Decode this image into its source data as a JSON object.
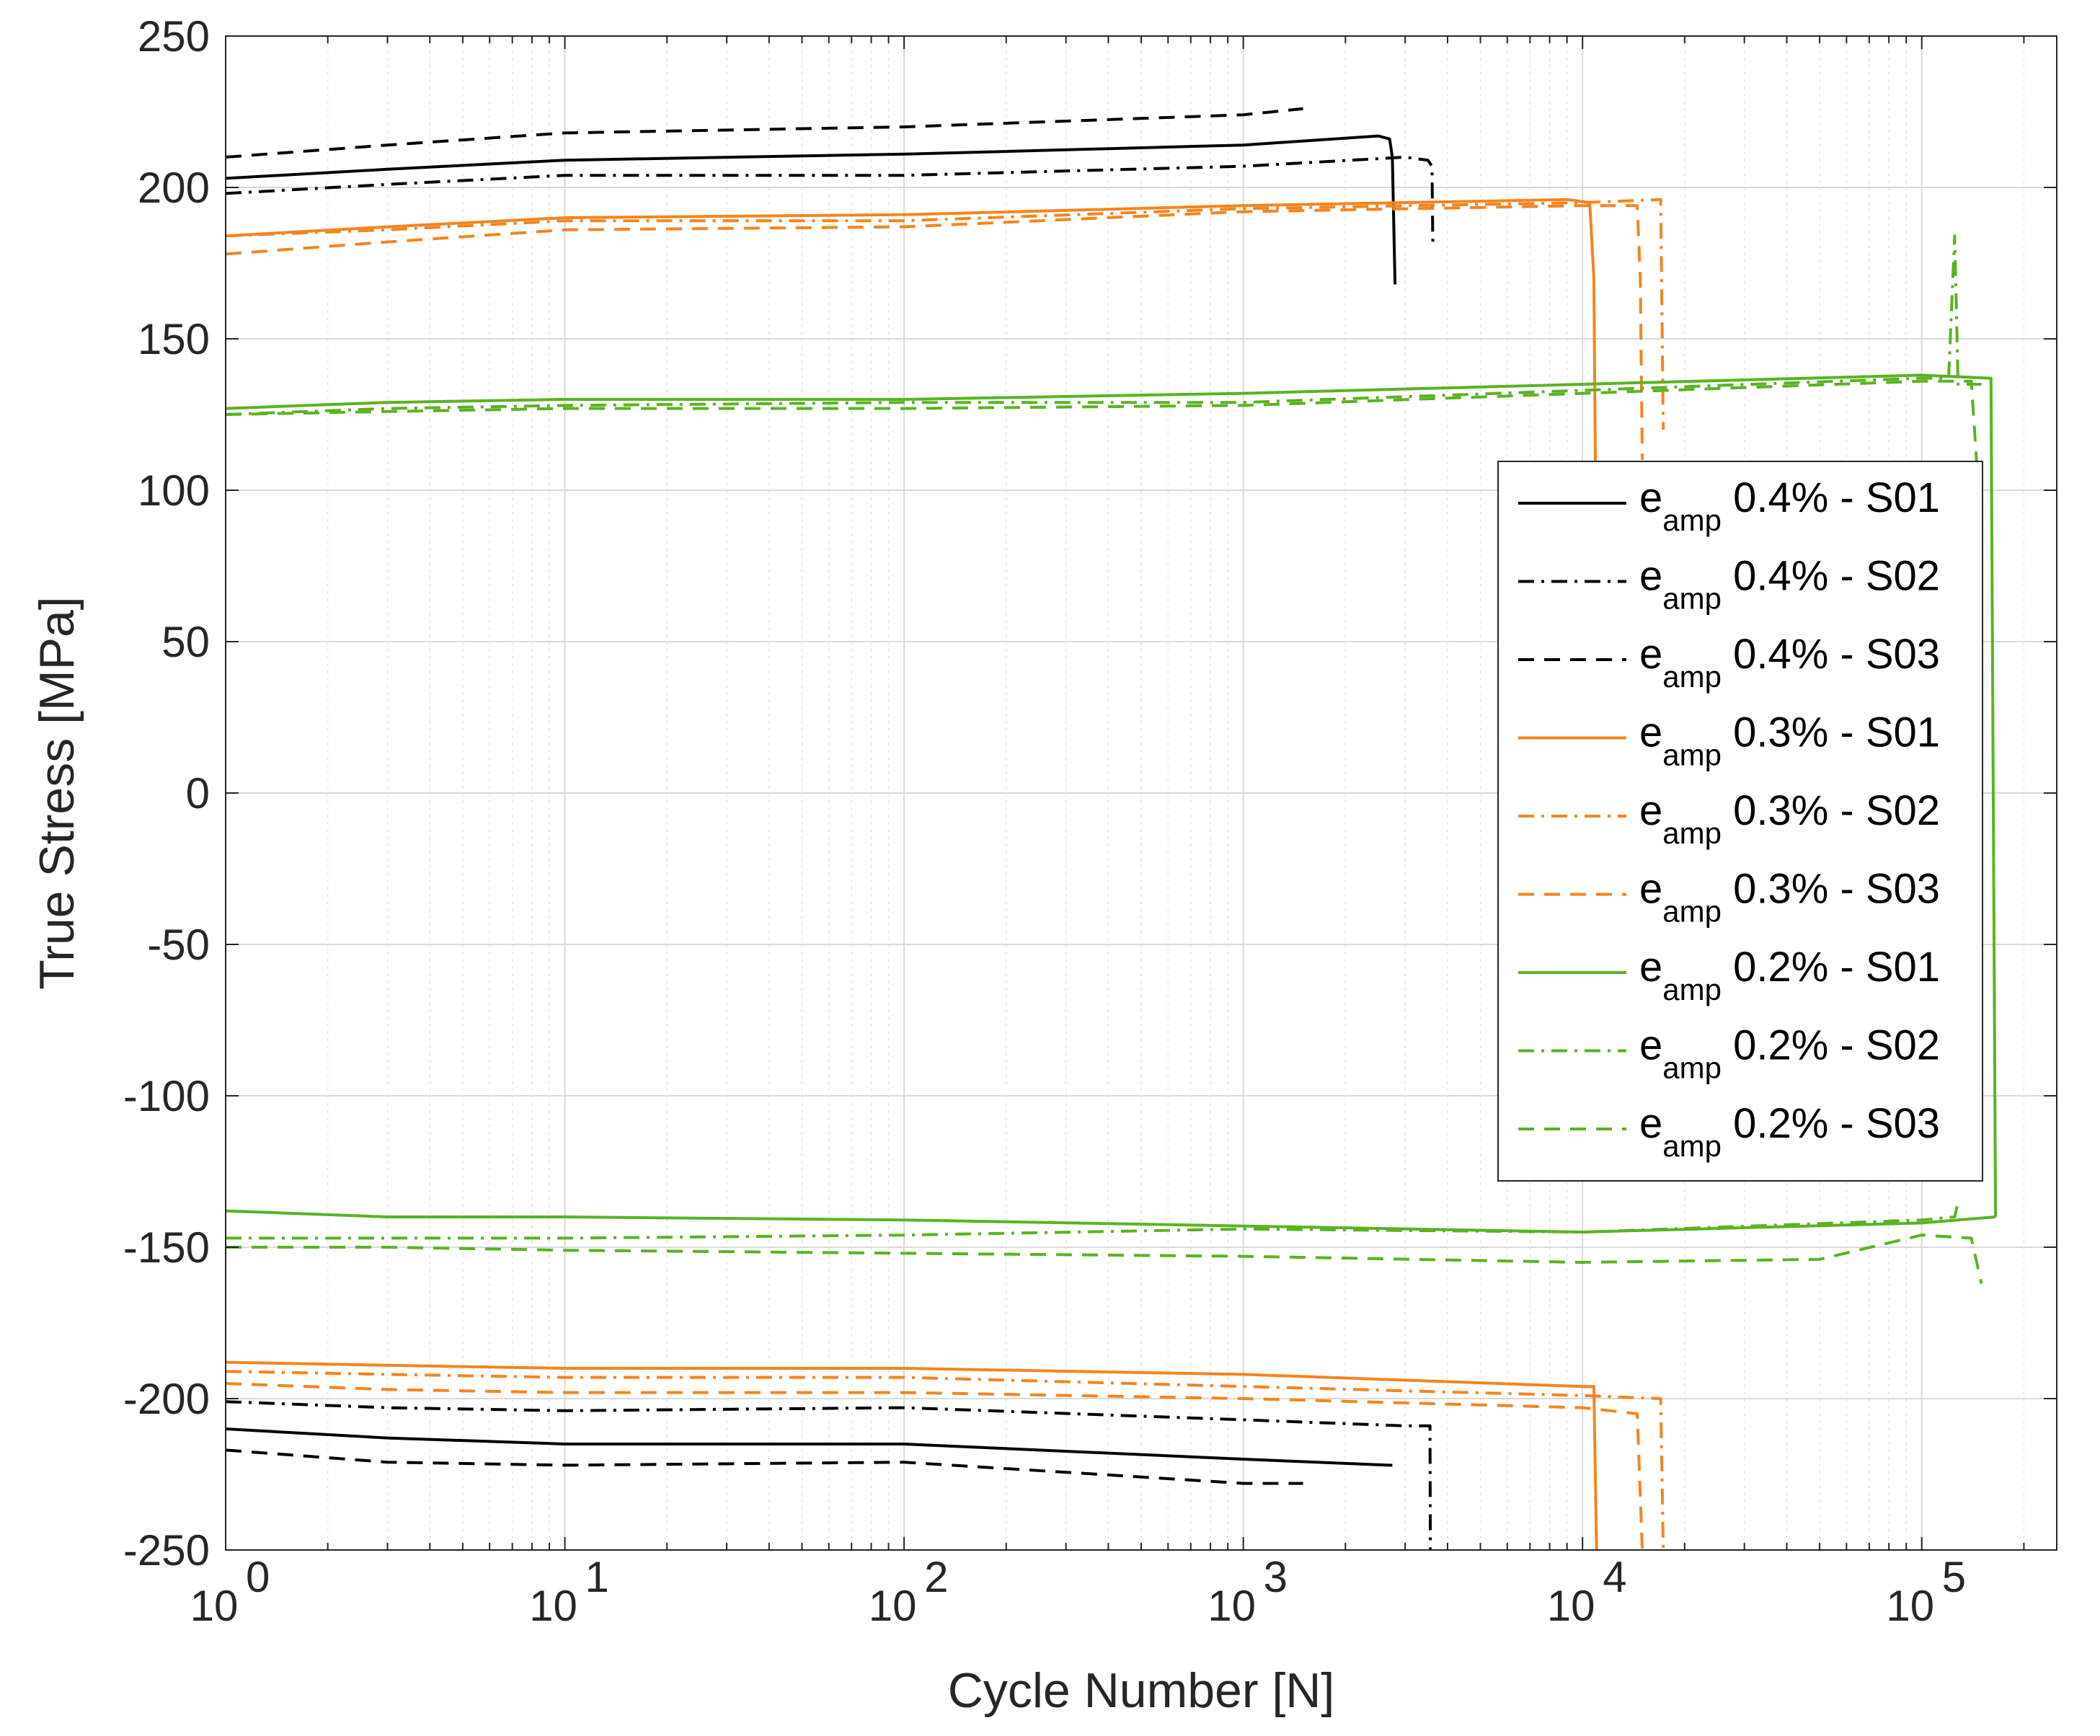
{
  "chart_data": {
    "type": "line",
    "title": "",
    "xlabel": "Cycle Number [N]",
    "ylabel": "True Stress [MPa]",
    "xscale": "log",
    "xlim": [
      1,
      250000
    ],
    "ylim": [
      -250,
      250
    ],
    "grid": true,
    "x_ticks": [
      {
        "value": 1,
        "base": "10",
        "exp": "0"
      },
      {
        "value": 10,
        "base": "10",
        "exp": "1"
      },
      {
        "value": 100,
        "base": "10",
        "exp": "2"
      },
      {
        "value": 1000,
        "base": "10",
        "exp": "3"
      },
      {
        "value": 10000,
        "base": "10",
        "exp": "4"
      },
      {
        "value": 100000,
        "base": "10",
        "exp": "5"
      }
    ],
    "y_ticks": [
      {
        "value": 250,
        "label": "250"
      },
      {
        "value": 200,
        "label": "200"
      },
      {
        "value": 150,
        "label": "150"
      },
      {
        "value": 100,
        "label": "100"
      },
      {
        "value": 50,
        "label": "50"
      },
      {
        "value": 0,
        "label": "0"
      },
      {
        "value": -50,
        "label": "-50"
      },
      {
        "value": -100,
        "label": "-100"
      },
      {
        "value": -150,
        "label": "-150"
      },
      {
        "value": -200,
        "label": "-200"
      },
      {
        "value": -250,
        "label": "-250"
      }
    ],
    "legend_position": "right-middle",
    "series": [
      {
        "name": "e_amp 0.4% - S01",
        "legend_main": "e",
        "legend_sub": "amp",
        "legend_rest": " 0.4% - S01",
        "color": "#000000",
        "style": "solid",
        "upper": [
          [
            1,
            203
          ],
          [
            3,
            206
          ],
          [
            10,
            209
          ],
          [
            100,
            211
          ],
          [
            1000,
            214
          ],
          [
            2500,
            217
          ],
          [
            2700,
            216
          ],
          [
            2750,
            210
          ],
          [
            2800,
            168
          ]
        ],
        "lower": [
          [
            1,
            -210
          ],
          [
            3,
            -213
          ],
          [
            10,
            -215
          ],
          [
            100,
            -215
          ],
          [
            1000,
            -220
          ],
          [
            2700,
            -222
          ],
          [
            2750,
            -222
          ]
        ]
      },
      {
        "name": "e_amp 0.4% - S02",
        "legend_main": "e",
        "legend_sub": "amp",
        "legend_rest": " 0.4% - S02",
        "color": "#000000",
        "style": "dashdot",
        "upper": [
          [
            1,
            198
          ],
          [
            3,
            201
          ],
          [
            10,
            204
          ],
          [
            100,
            204
          ],
          [
            1000,
            207
          ],
          [
            3000,
            210
          ],
          [
            3500,
            209
          ],
          [
            3600,
            207
          ],
          [
            3620,
            182
          ]
        ],
        "lower": [
          [
            1,
            -201
          ],
          [
            3,
            -203
          ],
          [
            10,
            -204
          ],
          [
            100,
            -203
          ],
          [
            1000,
            -207
          ],
          [
            3000,
            -209
          ],
          [
            3550,
            -209
          ],
          [
            3560,
            -250
          ]
        ]
      },
      {
        "name": "e_amp 0.4% - S03",
        "legend_main": "e",
        "legend_sub": "amp",
        "legend_rest": " 0.4% - S03",
        "color": "#000000",
        "style": "dashed",
        "upper": [
          [
            1,
            210
          ],
          [
            3,
            214
          ],
          [
            10,
            218
          ],
          [
            100,
            220
          ],
          [
            1000,
            224
          ],
          [
            1500,
            226
          ]
        ],
        "lower": [
          [
            1,
            -217
          ],
          [
            3,
            -221
          ],
          [
            10,
            -222
          ],
          [
            100,
            -221
          ],
          [
            1000,
            -228
          ],
          [
            1500,
            -228
          ]
        ]
      },
      {
        "name": "e_amp 0.3% - S01",
        "legend_main": "e",
        "legend_sub": "amp",
        "legend_rest": " 0.3% - S01",
        "color": "#F5841F",
        "style": "solid",
        "upper": [
          [
            1,
            184
          ],
          [
            3,
            187
          ],
          [
            10,
            190
          ],
          [
            100,
            191
          ],
          [
            1000,
            194
          ],
          [
            9000,
            196
          ],
          [
            10500,
            195
          ],
          [
            10800,
            170
          ],
          [
            11000,
            60
          ]
        ],
        "lower": [
          [
            1,
            -188
          ],
          [
            3,
            -189
          ],
          [
            10,
            -190
          ],
          [
            100,
            -190
          ],
          [
            1000,
            -192
          ],
          [
            10000,
            -196
          ],
          [
            10800,
            -196
          ],
          [
            11000,
            -250
          ]
        ]
      },
      {
        "name": "e_amp 0.3% - S02",
        "legend_main": "e",
        "legend_sub": "amp",
        "legend_rest": " 0.3% - S02",
        "color": "#F5841F",
        "style": "dashdot",
        "upper": [
          [
            1,
            184
          ],
          [
            3,
            186
          ],
          [
            10,
            189
          ],
          [
            100,
            189
          ],
          [
            1000,
            193
          ],
          [
            10000,
            195
          ],
          [
            17000,
            196
          ],
          [
            17300,
            120
          ]
        ],
        "lower": [
          [
            1,
            -191
          ],
          [
            3,
            -192
          ],
          [
            10,
            -193
          ],
          [
            100,
            -193
          ],
          [
            1000,
            -196
          ],
          [
            10000,
            -199
          ],
          [
            17000,
            -200
          ],
          [
            17300,
            -250
          ]
        ]
      },
      {
        "name": "e_amp 0.3% - S03",
        "legend_main": "e",
        "legend_sub": "amp",
        "legend_rest": " 0.3% - S03",
        "color": "#F5841F",
        "style": "dashed",
        "upper": [
          [
            1,
            178
          ],
          [
            3,
            182
          ],
          [
            10,
            186
          ],
          [
            100,
            187
          ],
          [
            1000,
            192
          ],
          [
            10000,
            194
          ],
          [
            14500,
            194
          ],
          [
            14800,
            170
          ],
          [
            15000,
            110
          ]
        ],
        "lower": [
          [
            1,
            -195
          ],
          [
            3,
            -197
          ],
          [
            10,
            -198
          ],
          [
            100,
            -198
          ],
          [
            1000,
            -200
          ],
          [
            10000,
            -203
          ],
          [
            14500,
            -205
          ],
          [
            15000,
            -250
          ]
        ]
      },
      {
        "name": "e_amp 0.2% - S01",
        "legend_main": "e",
        "legend_sub": "amp",
        "legend_rest": " 0.2% - S01",
        "color": "#5BB223",
        "style": "solid",
        "upper": [
          [
            1,
            127
          ],
          [
            3,
            129
          ],
          [
            10,
            130
          ],
          [
            100,
            130
          ],
          [
            1000,
            132
          ],
          [
            10000,
            135
          ],
          [
            100000,
            138
          ],
          [
            160000,
            137
          ],
          [
            165000,
            -140
          ]
        ],
        "lower": [
          [
            1,
            -138
          ],
          [
            3,
            -140
          ],
          [
            10,
            -140
          ],
          [
            100,
            -141
          ],
          [
            1000,
            -143
          ],
          [
            10000,
            -145
          ],
          [
            100000,
            -142
          ],
          [
            165000,
            -140
          ]
        ]
      },
      {
        "name": "e_amp 0.2% - S02",
        "legend_main": "e",
        "legend_sub": "amp",
        "legend_rest": " 0.2% - S02",
        "color": "#5BB223",
        "style": "dashdot",
        "upper": [
          [
            1,
            125
          ],
          [
            3,
            127
          ],
          [
            10,
            128
          ],
          [
            100,
            129
          ],
          [
            1000,
            129
          ],
          [
            10000,
            133
          ],
          [
            100000,
            137
          ],
          [
            120000,
            137
          ],
          [
            125000,
            184
          ],
          [
            128000,
            135
          ],
          [
            150000,
            135
          ]
        ],
        "lower": [
          [
            1,
            -147
          ],
          [
            3,
            -147
          ],
          [
            10,
            -147
          ],
          [
            100,
            -146
          ],
          [
            1000,
            -144
          ],
          [
            10000,
            -145
          ],
          [
            100000,
            -141
          ],
          [
            125000,
            -140
          ],
          [
            128000,
            -135
          ]
        ]
      },
      {
        "name": "e_amp 0.2% - S03",
        "legend_main": "e",
        "legend_sub": "amp",
        "legend_rest": " 0.2% - S03",
        "color": "#5BB223",
        "style": "dashed",
        "upper": [
          [
            1,
            125
          ],
          [
            3,
            126
          ],
          [
            10,
            127
          ],
          [
            100,
            127
          ],
          [
            1000,
            128
          ],
          [
            10000,
            132
          ],
          [
            100000,
            136
          ],
          [
            140000,
            136
          ],
          [
            145000,
            110
          ],
          [
            150000,
            35
          ]
        ],
        "lower": [
          [
            1,
            -150
          ],
          [
            3,
            -150
          ],
          [
            10,
            -151
          ],
          [
            100,
            -152
          ],
          [
            1000,
            -153
          ],
          [
            10000,
            -155
          ],
          [
            50000,
            -154
          ],
          [
            100000,
            -146
          ],
          [
            140000,
            -147
          ],
          [
            150000,
            -162
          ]
        ]
      }
    ]
  }
}
